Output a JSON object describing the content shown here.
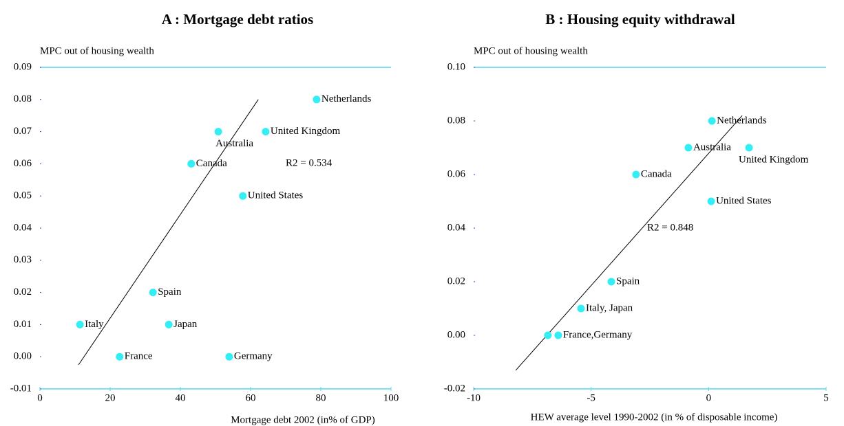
{
  "chart_data": [
    {
      "type": "scatter",
      "title": "A : Mortgage debt ratios",
      "ylabel": "MPC out of housing wealth",
      "xlabel": "Mortgage debt 2002 (in% of GDP)",
      "labels": [
        "Netherlands",
        "United Kingdom",
        "Australia",
        "Canada",
        "United States",
        "Spain",
        "Italy",
        "Japan",
        "France",
        "Germany"
      ],
      "x": [
        78.8,
        64.3,
        50.8,
        43.1,
        57.8,
        32.2,
        11.4,
        36.7,
        22.7,
        53.9
      ],
      "y": [
        0.08,
        0.07,
        0.07,
        0.06,
        0.05,
        0.02,
        0.01,
        0.01,
        0.0,
        0.0
      ],
      "color": "#33eef5",
      "axis_color": "#55d8f0",
      "xlim": [
        0,
        100
      ],
      "ylim": [
        -0.01,
        0.09
      ],
      "xticks": [
        0,
        20,
        40,
        60,
        80,
        100
      ],
      "yticks": [
        -0.01,
        {
          "value": 0,
          "label": "0.00"
        },
        0.01,
        0.02,
        0.03,
        0.04,
        0.05,
        0.06,
        0.07,
        0.08,
        0.09
      ],
      "trend": {
        "x": [
          11,
          62.2
        ],
        "y": [
          -0.0025,
          0.08
        ]
      },
      "annotation": "R2 = 0.534"
    },
    {
      "type": "scatter",
      "title": "B : Housing equity withdrawal",
      "ylabel": "MPC out of housing wealth",
      "xlabel": "HEW average level 1990-2002 (in % of disposable income)",
      "labels": [
        "Netherlands",
        "Australia",
        "United Kingdom",
        "Canada",
        "United States",
        "Spain",
        "Italy, Japan",
        null,
        "France,Germany"
      ],
      "x": [
        0.14,
        -0.86,
        1.72,
        -3.09,
        0.11,
        -4.14,
        -5.43,
        -6.84,
        -6.4
      ],
      "y": [
        0.08,
        0.07,
        0.07,
        0.06,
        0.05,
        0.02,
        0.01,
        0.0,
        0.0
      ],
      "color": "#33eef5",
      "axis_color": "#55d8f0",
      "xlim": [
        -10,
        5
      ],
      "ylim": [
        -0.02,
        0.1
      ],
      "xticks": [
        -10,
        -5,
        0,
        5
      ],
      "yticks": [
        -0.02,
        {
          "value": 0,
          "label": "0.00"
        },
        0.02,
        0.04,
        0.06,
        0.08,
        {
          "value": 0.1,
          "label": "0.10"
        }
      ],
      "trend": {
        "x": [
          -8.21,
          1.43
        ],
        "y": [
          -0.0131,
          0.082
        ]
      },
      "annotation": "R2 = 0.848"
    }
  ]
}
